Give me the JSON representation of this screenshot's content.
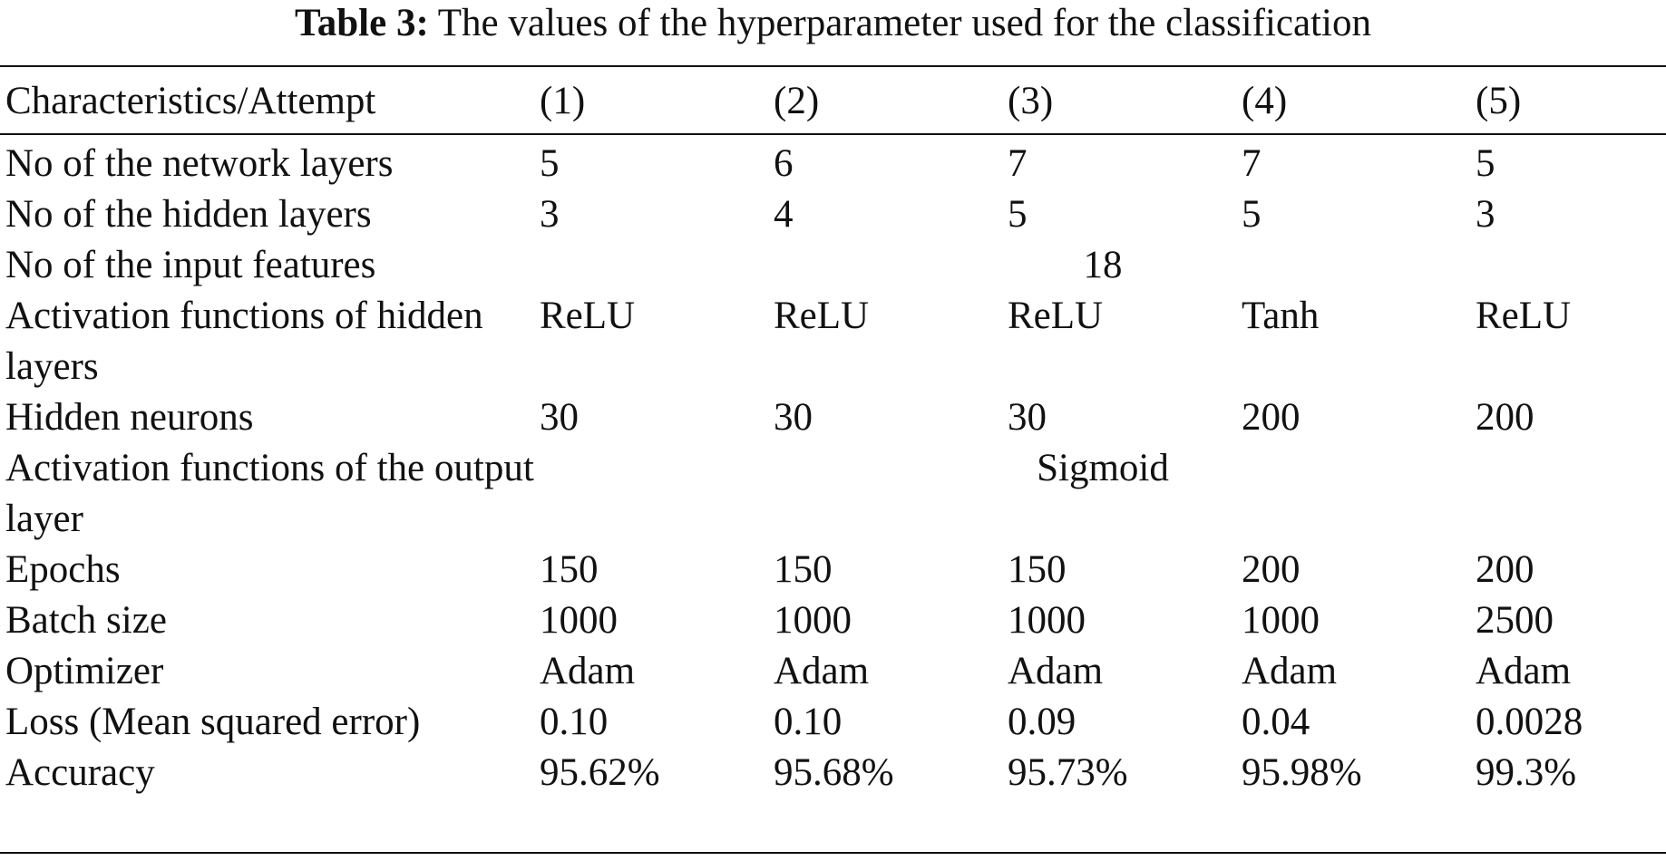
{
  "caption": {
    "label": "Table 3:",
    "text": "The values of the hyperparameter used for the classification"
  },
  "table": {
    "header": [
      "Characteristics/Attempt",
      "(1)",
      "(2)",
      "(3)",
      "(4)",
      "(5)"
    ],
    "rows": [
      {
        "label": "No of the network layers",
        "values": [
          "5",
          "6",
          "7",
          "7",
          "5"
        ]
      },
      {
        "label": "No of the hidden layers",
        "values": [
          "3",
          "4",
          "5",
          "5",
          "3"
        ]
      },
      {
        "label": "No of the input features",
        "span_value": "18"
      },
      {
        "label": "Activation functions of hidden layers",
        "values": [
          "ReLU",
          "ReLU",
          "ReLU",
          "Tanh",
          "ReLU"
        ]
      },
      {
        "label": "Hidden neurons",
        "values": [
          "30",
          "30",
          "30",
          "200",
          "200"
        ]
      },
      {
        "label": "Activation functions of the output layer",
        "span_value": "Sigmoid"
      },
      {
        "label": "Epochs",
        "values": [
          "150",
          "150",
          "150",
          "200",
          "200"
        ]
      },
      {
        "label": "Batch size",
        "values": [
          "1000",
          "1000",
          "1000",
          "1000",
          "2500"
        ]
      },
      {
        "label": "Optimizer",
        "values": [
          "Adam",
          "Adam",
          "Adam",
          "Adam",
          "Adam"
        ]
      },
      {
        "label": "Loss (Mean squared error)",
        "values": [
          "0.10",
          "0.10",
          "0.09",
          "0.04",
          "0.0028"
        ]
      },
      {
        "label": "Accuracy",
        "values": [
          "95.62%",
          "95.68%",
          "95.73%",
          "95.98%",
          "99.3%"
        ]
      }
    ]
  }
}
